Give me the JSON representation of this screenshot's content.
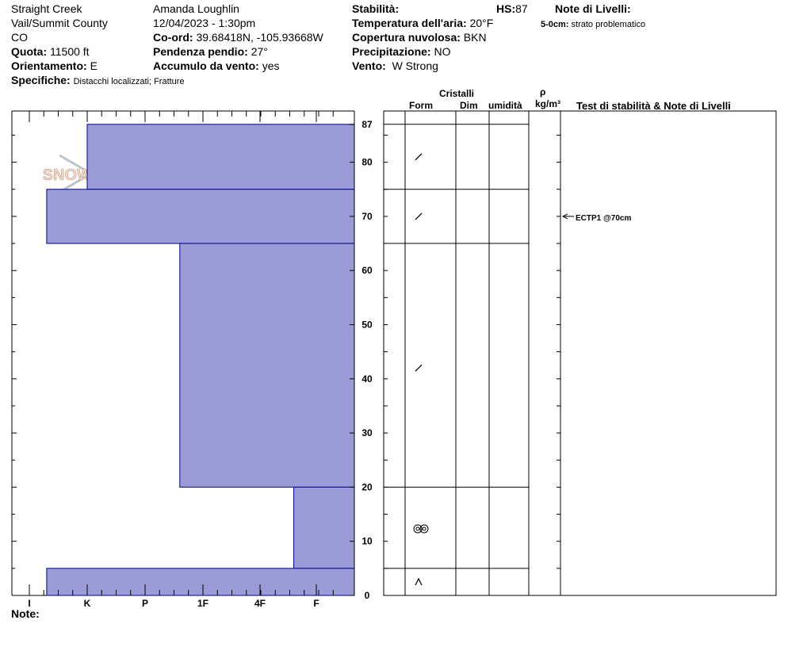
{
  "header": {
    "location": [
      "Straight Creek",
      "Vail/Summit County",
      "CO"
    ],
    "quota_label": "Quota:",
    "quota_value": "11500 ft",
    "orient_label": "Orientamento:",
    "orient_value": "E",
    "spec_label": "Specifiche:",
    "spec_value": "Distacchi localizzati;  Fratture",
    "observer": "Amanda Loughlin",
    "datetime": "12/04/2023 - 1:30pm",
    "coord_label": "Co-ord:",
    "coord_value": "39.68418N, -105.93668W",
    "slope_label": "Pendenza pendio:",
    "slope_value": "27°",
    "wind_load_label": "Accumulo da vento:",
    "wind_load_value": "yes",
    "stability_label": "Stabilità:",
    "hs_label": "HS:",
    "hs_value": "87",
    "air_temp_label": "Temperatura dell'aria:",
    "air_temp_value": "20°F",
    "cloud_label": "Copertura nuvolosa:",
    "cloud_value": "BKN",
    "precip_label": "Precipitazione:",
    "precip_value": "NO",
    "wind_label": "Vento:",
    "wind_value": "W Strong",
    "layer_notes_label": "Note di Livelli:",
    "layer_note_depth": "5-0cm:",
    "layer_note_text": "strato problematico",
    "notes_label": "Note:"
  },
  "logo_text": "SNOW PILOT",
  "table_headers": {
    "crystals": "Cristalli",
    "form": "Form",
    "size": "Dim",
    "moisture": "umidità",
    "rho": "ρ",
    "density_unit": "kg/m³",
    "tests": "Test di stabilità & Note di Livelli"
  },
  "stability_test": {
    "label": "ECTP1 @70cm",
    "height_cm": 70
  },
  "colors": {
    "layer_fill": "#9b9bd7",
    "layer_stroke": "#00008b"
  },
  "chart_data": {
    "type": "bar",
    "title": "",
    "hardness_scale": [
      "I",
      "K",
      "P",
      "1F",
      "4F",
      "F"
    ],
    "height_ticks": [
      0,
      10,
      20,
      30,
      40,
      50,
      60,
      70,
      80,
      87
    ],
    "ylim": [
      0,
      87
    ],
    "hs": 87,
    "layers": [
      {
        "top": 87,
        "bottom": 75,
        "hardness_index": 1.0,
        "grain": "precipitation-particles"
      },
      {
        "top": 75,
        "bottom": 65,
        "hardness_index": 0.3,
        "grain": "precipitation-particles"
      },
      {
        "top": 65,
        "bottom": 20,
        "hardness_index": 2.6,
        "grain": "precipitation-particles"
      },
      {
        "top": 20,
        "bottom": 5,
        "hardness_index": 4.6,
        "grain": "rounded-polycrystals"
      },
      {
        "top": 5,
        "bottom": 0,
        "hardness_index": 0.3,
        "grain": "depth-hoar"
      }
    ]
  }
}
